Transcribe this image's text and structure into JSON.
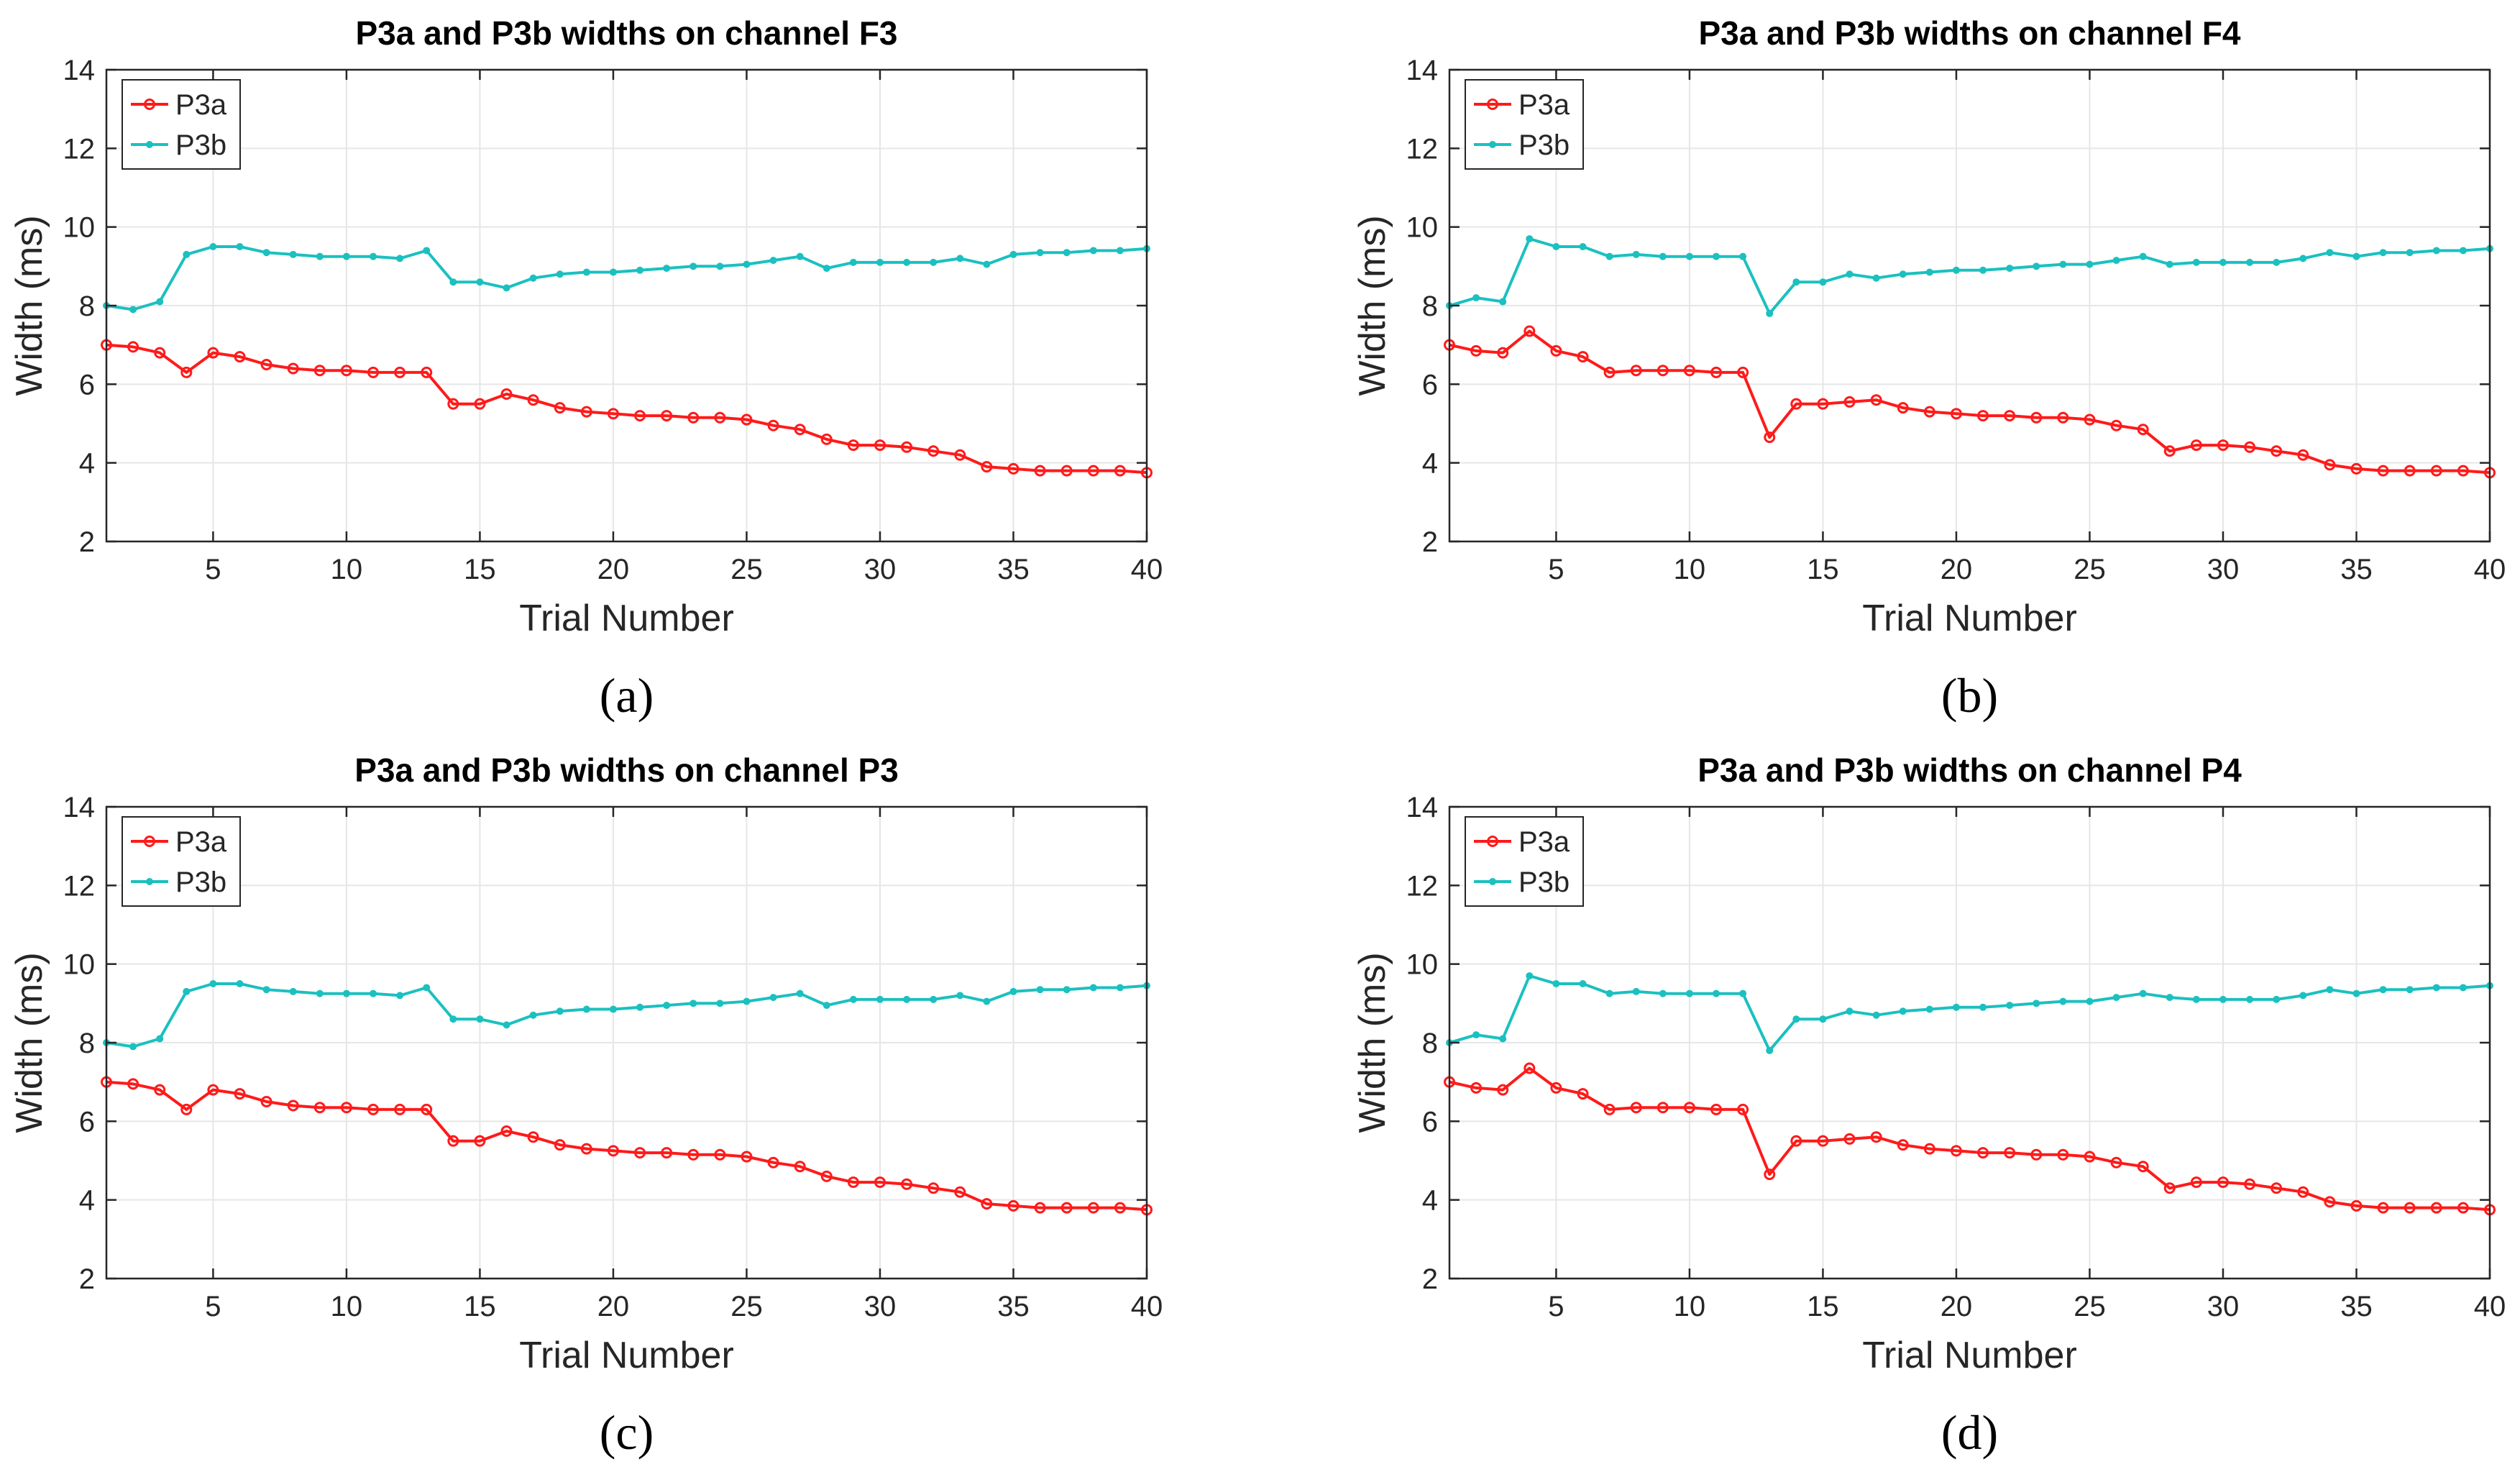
{
  "colors": {
    "p3a": "#ff1a1a",
    "p3b": "#1bc0c0",
    "grid": "#e6e6e6",
    "axis": "#262626",
    "text": "#262626",
    "caption": "#000000"
  },
  "chart_data": [
    {
      "type": "line",
      "panel_label": "(a)",
      "title": "P3a and P3b widths on channel F3",
      "xlabel": "Trial Number",
      "ylabel": "Width (ms)",
      "xlim": [
        1,
        40
      ],
      "ylim": [
        2,
        14
      ],
      "xticks": [
        5,
        10,
        15,
        20,
        25,
        30,
        35,
        40
      ],
      "yticks": [
        2,
        4,
        6,
        8,
        10,
        12,
        14
      ],
      "grid": true,
      "legend": "top-left",
      "series": [
        {
          "name": "P3a",
          "color": "#ff1a1a",
          "x": [
            1,
            2,
            3,
            4,
            5,
            6,
            7,
            8,
            9,
            10,
            11,
            12,
            13,
            14,
            15,
            16,
            17,
            18,
            19,
            20,
            21,
            22,
            23,
            24,
            25,
            26,
            27,
            28,
            29,
            30,
            31,
            32,
            33,
            34,
            35,
            36,
            37,
            38,
            39,
            40
          ],
          "values": [
            7.0,
            6.95,
            6.8,
            6.3,
            6.8,
            6.7,
            6.5,
            6.4,
            6.35,
            6.35,
            6.3,
            6.3,
            6.3,
            5.5,
            5.5,
            5.75,
            5.6,
            5.4,
            5.3,
            5.25,
            5.2,
            5.2,
            5.15,
            5.15,
            5.1,
            4.95,
            4.85,
            4.6,
            4.45,
            4.45,
            4.4,
            4.3,
            4.2,
            3.9,
            3.85,
            3.8,
            3.8,
            3.8,
            3.8,
            3.75
          ]
        },
        {
          "name": "P3b",
          "color": "#1bc0c0",
          "x": [
            1,
            2,
            3,
            4,
            5,
            6,
            7,
            8,
            9,
            10,
            11,
            12,
            13,
            14,
            15,
            16,
            17,
            18,
            19,
            20,
            21,
            22,
            23,
            24,
            25,
            26,
            27,
            28,
            29,
            30,
            31,
            32,
            33,
            34,
            35,
            36,
            37,
            38,
            39,
            40
          ],
          "values": [
            8.0,
            7.9,
            8.1,
            9.3,
            9.5,
            9.5,
            9.35,
            9.3,
            9.25,
            9.25,
            9.25,
            9.2,
            9.4,
            8.6,
            8.6,
            8.45,
            8.7,
            8.8,
            8.85,
            8.85,
            8.9,
            8.95,
            9.0,
            9.0,
            9.05,
            9.15,
            9.25,
            8.95,
            9.1,
            9.1,
            9.1,
            9.1,
            9.2,
            9.05,
            9.3,
            9.35,
            9.35,
            9.4,
            9.4,
            9.45
          ]
        }
      ]
    },
    {
      "type": "line",
      "panel_label": "(b)",
      "title": "P3a and P3b widths on channel F4",
      "xlabel": "Trial Number",
      "ylabel": "Width (ms)",
      "xlim": [
        1,
        40
      ],
      "ylim": [
        2,
        14
      ],
      "xticks": [
        5,
        10,
        15,
        20,
        25,
        30,
        35,
        40
      ],
      "yticks": [
        2,
        4,
        6,
        8,
        10,
        12,
        14
      ],
      "grid": true,
      "legend": "top-left",
      "series": [
        {
          "name": "P3a",
          "color": "#ff1a1a",
          "x": [
            1,
            2,
            3,
            4,
            5,
            6,
            7,
            8,
            9,
            10,
            11,
            12,
            13,
            14,
            15,
            16,
            17,
            18,
            19,
            20,
            21,
            22,
            23,
            24,
            25,
            26,
            27,
            28,
            29,
            30,
            31,
            32,
            33,
            34,
            35,
            36,
            37,
            38,
            39,
            40
          ],
          "values": [
            7.0,
            6.85,
            6.8,
            7.35,
            6.85,
            6.7,
            6.3,
            6.35,
            6.35,
            6.35,
            6.3,
            6.3,
            4.65,
            5.5,
            5.5,
            5.55,
            5.6,
            5.4,
            5.3,
            5.25,
            5.2,
            5.2,
            5.15,
            5.15,
            5.1,
            4.95,
            4.85,
            4.3,
            4.45,
            4.45,
            4.4,
            4.3,
            4.2,
            3.95,
            3.85,
            3.8,
            3.8,
            3.8,
            3.8,
            3.75
          ]
        },
        {
          "name": "P3b",
          "color": "#1bc0c0",
          "x": [
            1,
            2,
            3,
            4,
            5,
            6,
            7,
            8,
            9,
            10,
            11,
            12,
            13,
            14,
            15,
            16,
            17,
            18,
            19,
            20,
            21,
            22,
            23,
            24,
            25,
            26,
            27,
            28,
            29,
            30,
            31,
            32,
            33,
            34,
            35,
            36,
            37,
            38,
            39,
            40
          ],
          "values": [
            8.0,
            8.2,
            8.1,
            9.7,
            9.5,
            9.5,
            9.25,
            9.3,
            9.25,
            9.25,
            9.25,
            9.25,
            7.8,
            8.6,
            8.6,
            8.8,
            8.7,
            8.8,
            8.85,
            8.9,
            8.9,
            8.95,
            9.0,
            9.05,
            9.05,
            9.15,
            9.25,
            9.05,
            9.1,
            9.1,
            9.1,
            9.1,
            9.2,
            9.35,
            9.25,
            9.35,
            9.35,
            9.4,
            9.4,
            9.45
          ]
        }
      ]
    },
    {
      "type": "line",
      "panel_label": "(c)",
      "title": "P3a and P3b widths on channel P3",
      "xlabel": "Trial Number",
      "ylabel": "Width (ms)",
      "xlim": [
        1,
        40
      ],
      "ylim": [
        2,
        14
      ],
      "xticks": [
        5,
        10,
        15,
        20,
        25,
        30,
        35,
        40
      ],
      "yticks": [
        2,
        4,
        6,
        8,
        10,
        12,
        14
      ],
      "grid": true,
      "legend": "top-left",
      "series": [
        {
          "name": "P3a",
          "color": "#ff1a1a",
          "x": [
            1,
            2,
            3,
            4,
            5,
            6,
            7,
            8,
            9,
            10,
            11,
            12,
            13,
            14,
            15,
            16,
            17,
            18,
            19,
            20,
            21,
            22,
            23,
            24,
            25,
            26,
            27,
            28,
            29,
            30,
            31,
            32,
            33,
            34,
            35,
            36,
            37,
            38,
            39,
            40
          ],
          "values": [
            7.0,
            6.95,
            6.8,
            6.3,
            6.8,
            6.7,
            6.5,
            6.4,
            6.35,
            6.35,
            6.3,
            6.3,
            6.3,
            5.5,
            5.5,
            5.75,
            5.6,
            5.4,
            5.3,
            5.25,
            5.2,
            5.2,
            5.15,
            5.15,
            5.1,
            4.95,
            4.85,
            4.6,
            4.45,
            4.45,
            4.4,
            4.3,
            4.2,
            3.9,
            3.85,
            3.8,
            3.8,
            3.8,
            3.8,
            3.75
          ]
        },
        {
          "name": "P3b",
          "color": "#1bc0c0",
          "x": [
            1,
            2,
            3,
            4,
            5,
            6,
            7,
            8,
            9,
            10,
            11,
            12,
            13,
            14,
            15,
            16,
            17,
            18,
            19,
            20,
            21,
            22,
            23,
            24,
            25,
            26,
            27,
            28,
            29,
            30,
            31,
            32,
            33,
            34,
            35,
            36,
            37,
            38,
            39,
            40
          ],
          "values": [
            8.0,
            7.9,
            8.1,
            9.3,
            9.5,
            9.5,
            9.35,
            9.3,
            9.25,
            9.25,
            9.25,
            9.2,
            9.4,
            8.6,
            8.6,
            8.45,
            8.7,
            8.8,
            8.85,
            8.85,
            8.9,
            8.95,
            9.0,
            9.0,
            9.05,
            9.15,
            9.25,
            8.95,
            9.1,
            9.1,
            9.1,
            9.1,
            9.2,
            9.05,
            9.3,
            9.35,
            9.35,
            9.4,
            9.4,
            9.45
          ]
        }
      ]
    },
    {
      "type": "line",
      "panel_label": "(d)",
      "title": "P3a and P3b widths on channel P4",
      "xlabel": "Trial Number",
      "ylabel": "Width (ms)",
      "xlim": [
        1,
        40
      ],
      "ylim": [
        2,
        14
      ],
      "xticks": [
        5,
        10,
        15,
        20,
        25,
        30,
        35,
        40
      ],
      "yticks": [
        2,
        4,
        6,
        8,
        10,
        12,
        14
      ],
      "grid": true,
      "legend": "top-left",
      "series": [
        {
          "name": "P3a",
          "color": "#ff1a1a",
          "x": [
            1,
            2,
            3,
            4,
            5,
            6,
            7,
            8,
            9,
            10,
            11,
            12,
            13,
            14,
            15,
            16,
            17,
            18,
            19,
            20,
            21,
            22,
            23,
            24,
            25,
            26,
            27,
            28,
            29,
            30,
            31,
            32,
            33,
            34,
            35,
            36,
            37,
            38,
            39,
            40
          ],
          "values": [
            7.0,
            6.85,
            6.8,
            7.35,
            6.85,
            6.7,
            6.3,
            6.35,
            6.35,
            6.35,
            6.3,
            6.3,
            4.65,
            5.5,
            5.5,
            5.55,
            5.6,
            5.4,
            5.3,
            5.25,
            5.2,
            5.2,
            5.15,
            5.15,
            5.1,
            4.95,
            4.85,
            4.3,
            4.45,
            4.45,
            4.4,
            4.3,
            4.2,
            3.95,
            3.85,
            3.8,
            3.8,
            3.8,
            3.8,
            3.75
          ]
        },
        {
          "name": "P3b",
          "color": "#1bc0c0",
          "x": [
            1,
            2,
            3,
            4,
            5,
            6,
            7,
            8,
            9,
            10,
            11,
            12,
            13,
            14,
            15,
            16,
            17,
            18,
            19,
            20,
            21,
            22,
            23,
            24,
            25,
            26,
            27,
            28,
            29,
            30,
            31,
            32,
            33,
            34,
            35,
            36,
            37,
            38,
            39,
            40
          ],
          "values": [
            8.0,
            8.2,
            8.1,
            9.7,
            9.5,
            9.5,
            9.25,
            9.3,
            9.25,
            9.25,
            9.25,
            9.25,
            7.8,
            8.6,
            8.6,
            8.8,
            8.7,
            8.8,
            8.85,
            8.9,
            8.9,
            8.95,
            9.0,
            9.05,
            9.05,
            9.15,
            9.25,
            9.15,
            9.1,
            9.1,
            9.1,
            9.1,
            9.2,
            9.35,
            9.25,
            9.35,
            9.35,
            9.4,
            9.4,
            9.45
          ]
        }
      ]
    }
  ]
}
